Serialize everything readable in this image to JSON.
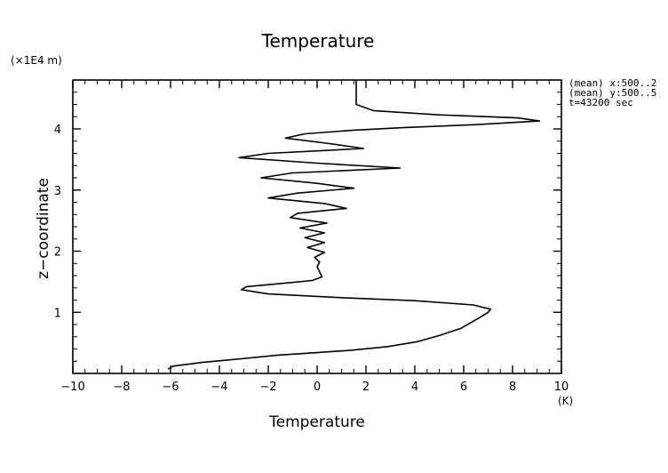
{
  "chart_data": {
    "type": "line",
    "title": "Temperature",
    "xlabel": "Temperature",
    "ylabel": "z−coordinate",
    "x_unit": "(K)",
    "y_unit": "(×1E4 m)",
    "xlim": [
      -10,
      10
    ],
    "ylim": [
      0,
      4.8
    ],
    "x_ticks": [
      -10,
      -8,
      -6,
      -4,
      -2,
      0,
      2,
      4,
      6,
      8,
      10
    ],
    "x_tick_labels": [
      "−10",
      "−8",
      "−6",
      "−4",
      "−2",
      "0",
      "2",
      "4",
      "6",
      "8",
      "10"
    ],
    "y_ticks": [
      1,
      2,
      3,
      4
    ],
    "y_tick_labels": [
      "1",
      "2",
      "3",
      "4"
    ],
    "annotations": [
      "(mean) x:500..2",
      "(mean) y:500..5",
      "t=43200 sec"
    ],
    "series": [
      {
        "points": [
          [
            -6.1,
            0.07
          ],
          [
            -5.9,
            0.12
          ],
          [
            -4.7,
            0.18
          ],
          [
            -3.1,
            0.24
          ],
          [
            -1.6,
            0.3
          ],
          [
            0.0,
            0.34
          ],
          [
            1.4,
            0.38
          ],
          [
            2.9,
            0.44
          ],
          [
            4.1,
            0.52
          ],
          [
            5.0,
            0.62
          ],
          [
            5.9,
            0.74
          ],
          [
            6.6,
            0.9
          ],
          [
            7.0,
            1.0
          ],
          [
            7.1,
            1.05
          ],
          [
            6.4,
            1.12
          ],
          [
            4.0,
            1.19
          ],
          [
            1.0,
            1.24
          ],
          [
            -2.0,
            1.3
          ],
          [
            -3.1,
            1.37
          ],
          [
            -2.9,
            1.42
          ],
          [
            -1.5,
            1.47
          ],
          [
            -0.2,
            1.52
          ],
          [
            0.2,
            1.58
          ],
          [
            0.1,
            1.66
          ],
          [
            0.0,
            1.75
          ],
          [
            0.1,
            1.82
          ],
          [
            -0.1,
            1.9
          ],
          [
            0.3,
            1.98
          ],
          [
            -0.4,
            2.06
          ],
          [
            0.3,
            2.14
          ],
          [
            -0.5,
            2.22
          ],
          [
            0.3,
            2.3
          ],
          [
            -0.7,
            2.38
          ],
          [
            0.4,
            2.46
          ],
          [
            -1.1,
            2.55
          ],
          [
            -0.8,
            2.62
          ],
          [
            1.2,
            2.7
          ],
          [
            0.3,
            2.78
          ],
          [
            -2.0,
            2.87
          ],
          [
            -0.8,
            2.95
          ],
          [
            1.5,
            3.03
          ],
          [
            0.0,
            3.11
          ],
          [
            -2.3,
            3.2
          ],
          [
            -1.0,
            3.28
          ],
          [
            3.4,
            3.36
          ],
          [
            0.0,
            3.44
          ],
          [
            -3.2,
            3.53
          ],
          [
            -2.0,
            3.6
          ],
          [
            1.9,
            3.68
          ],
          [
            0.5,
            3.76
          ],
          [
            -1.3,
            3.85
          ],
          [
            -0.5,
            3.92
          ],
          [
            1.5,
            3.98
          ],
          [
            3.5,
            4.02
          ],
          [
            6.5,
            4.07
          ],
          [
            9.1,
            4.13
          ],
          [
            8.2,
            4.18
          ],
          [
            5.0,
            4.23
          ],
          [
            2.3,
            4.3
          ],
          [
            1.6,
            4.4
          ],
          [
            1.6,
            4.55
          ],
          [
            1.6,
            4.8
          ]
        ]
      }
    ]
  }
}
